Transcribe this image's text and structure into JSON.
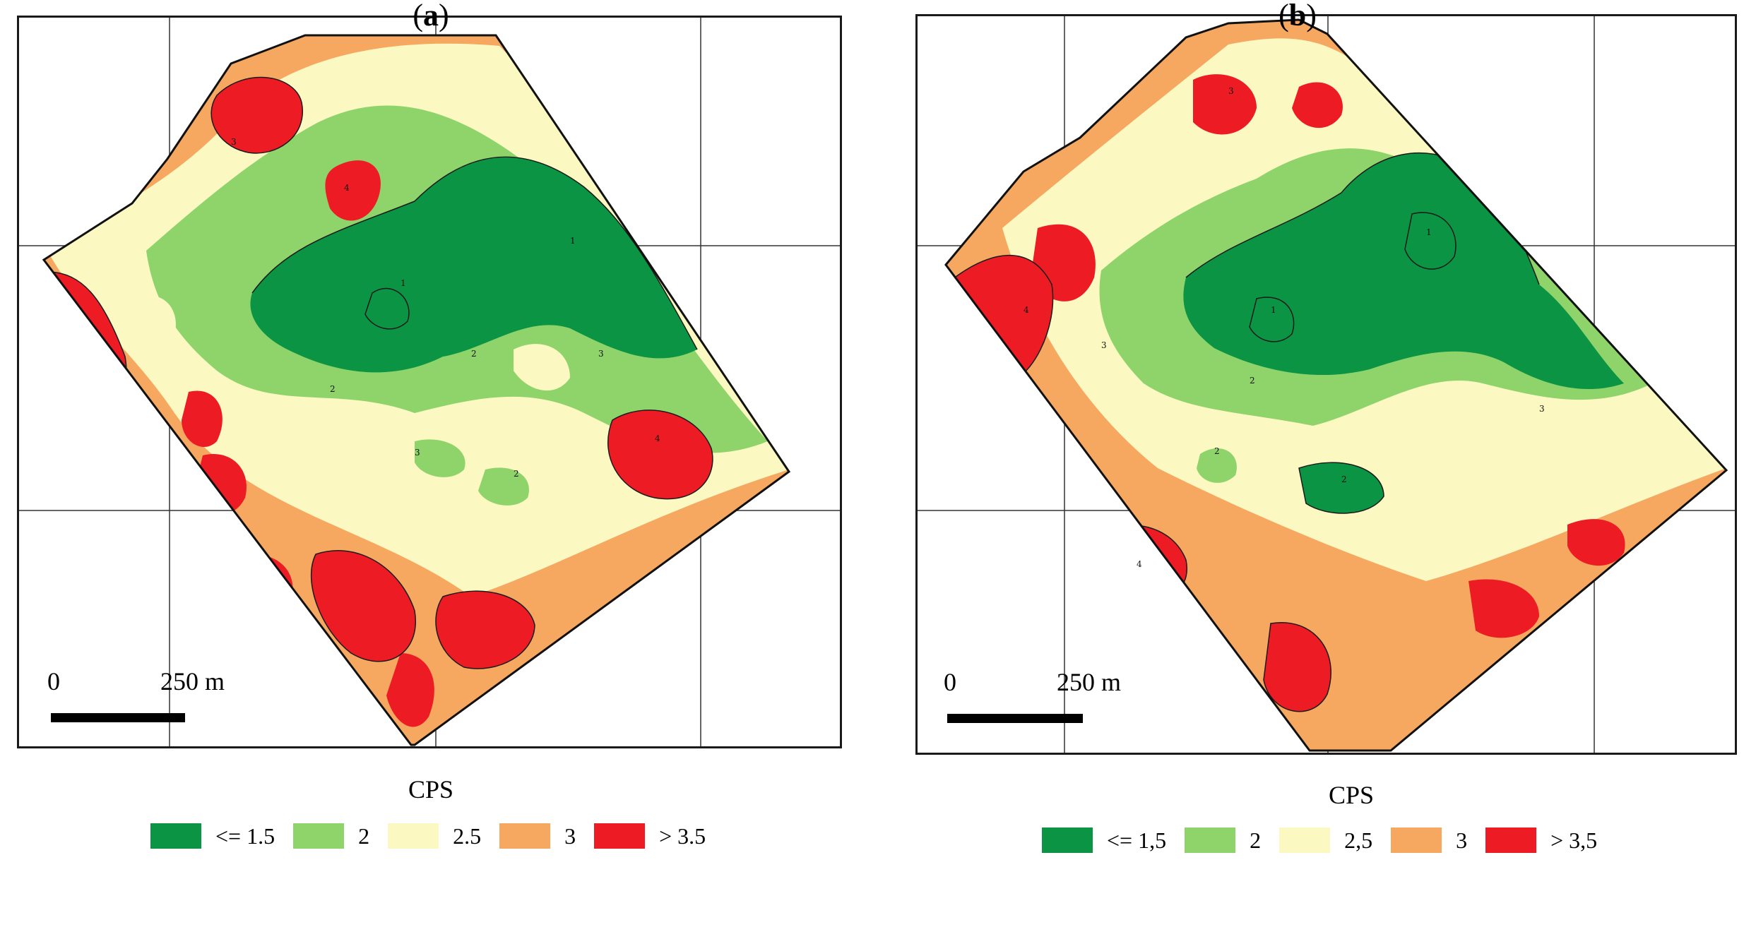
{
  "figure": {
    "panels": [
      {
        "id": "a",
        "caption_open": "(",
        "caption_letter": "a",
        "caption_close": ")",
        "scale_start": "0",
        "scale_end": "250 m",
        "legend_title": "CPS",
        "legend": [
          {
            "label": "<= 1.5",
            "color": "#0a9443"
          },
          {
            "label": "2",
            "color": "#8fd46b"
          },
          {
            "label": "2.5",
            "color": "#fbf8c2"
          },
          {
            "label": "3",
            "color": "#f6a860"
          },
          {
            "label": "> 3.5",
            "color": "#ed1c24"
          }
        ],
        "contour_labels": [
          "1",
          "2",
          "3",
          "4",
          "1",
          "2",
          "3",
          "4",
          "2",
          "3"
        ]
      },
      {
        "id": "b",
        "caption_open": "(",
        "caption_letter": "b",
        "caption_close": ")",
        "scale_start": "0",
        "scale_end": "250 m",
        "legend_title": "CPS",
        "legend": [
          {
            "label": "<= 1,5",
            "color": "#0a9443"
          },
          {
            "label": "2",
            "color": "#8fd46b"
          },
          {
            "label": "2,5",
            "color": "#fbf8c2"
          },
          {
            "label": "3",
            "color": "#f6a860"
          },
          {
            "label": "> 3,5",
            "color": "#ed1c24"
          }
        ],
        "contour_labels": [
          "1",
          "2",
          "3",
          "4",
          "1",
          "2",
          "3",
          "4",
          "2",
          "3"
        ]
      }
    ]
  }
}
